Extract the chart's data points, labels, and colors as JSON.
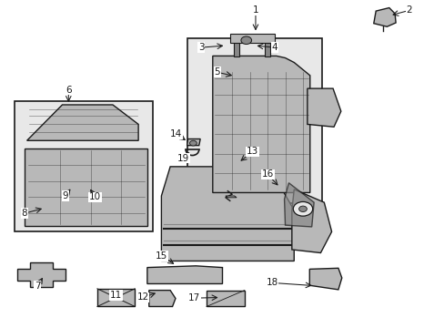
{
  "bg_color": "#ffffff",
  "line_color": "#1a1a1a",
  "fill_light": "#e8e8e8",
  "fill_medium": "#b8b8b8",
  "fill_dark": "#888888",
  "figsize": [
    4.89,
    3.6
  ],
  "dpi": 100,
  "label_arrow_map": {
    "1": {
      "lpos": [
        0.575,
        0.972
      ],
      "apos": [
        0.575,
        0.902
      ]
    },
    "2": {
      "lpos": [
        0.922,
        0.972
      ],
      "apos": [
        0.878,
        0.956
      ]
    },
    "3": {
      "lpos": [
        0.452,
        0.858
      ],
      "apos": [
        0.508,
        0.864
      ]
    },
    "4": {
      "lpos": [
        0.618,
        0.858
      ],
      "apos": [
        0.572,
        0.864
      ]
    },
    "5": {
      "lpos": [
        0.488,
        0.782
      ],
      "apos": [
        0.528,
        0.77
      ]
    },
    "6": {
      "lpos": [
        0.152,
        0.728
      ],
      "apos": [
        0.152,
        0.682
      ]
    },
    "7": {
      "lpos": [
        0.082,
        0.125
      ],
      "apos": [
        0.097,
        0.158
      ]
    },
    "8": {
      "lpos": [
        0.052,
        0.348
      ],
      "apos": [
        0.098,
        0.365
      ]
    },
    "9": {
      "lpos": [
        0.145,
        0.402
      ],
      "apos": [
        0.16,
        0.43
      ]
    },
    "10": {
      "lpos": [
        0.212,
        0.398
      ],
      "apos": [
        0.198,
        0.43
      ]
    },
    "11": {
      "lpos": [
        0.26,
        0.096
      ],
      "apos": [
        0.272,
        0.118
      ]
    },
    "12": {
      "lpos": [
        0.32,
        0.09
      ],
      "apos": [
        0.355,
        0.106
      ]
    },
    "13": {
      "lpos": [
        0.568,
        0.538
      ],
      "apos": [
        0.536,
        0.504
      ]
    },
    "14": {
      "lpos": [
        0.396,
        0.592
      ],
      "apos": [
        0.422,
        0.568
      ]
    },
    "15": {
      "lpos": [
        0.362,
        0.218
      ],
      "apos": [
        0.396,
        0.188
      ]
    },
    "16": {
      "lpos": [
        0.602,
        0.468
      ],
      "apos": [
        0.63,
        0.428
      ]
    },
    "17": {
      "lpos": [
        0.436,
        0.088
      ],
      "apos": [
        0.496,
        0.09
      ]
    },
    "18": {
      "lpos": [
        0.612,
        0.135
      ],
      "apos": [
        0.708,
        0.126
      ]
    },
    "19": {
      "lpos": [
        0.412,
        0.518
      ],
      "apos": [
        0.43,
        0.542
      ]
    }
  }
}
